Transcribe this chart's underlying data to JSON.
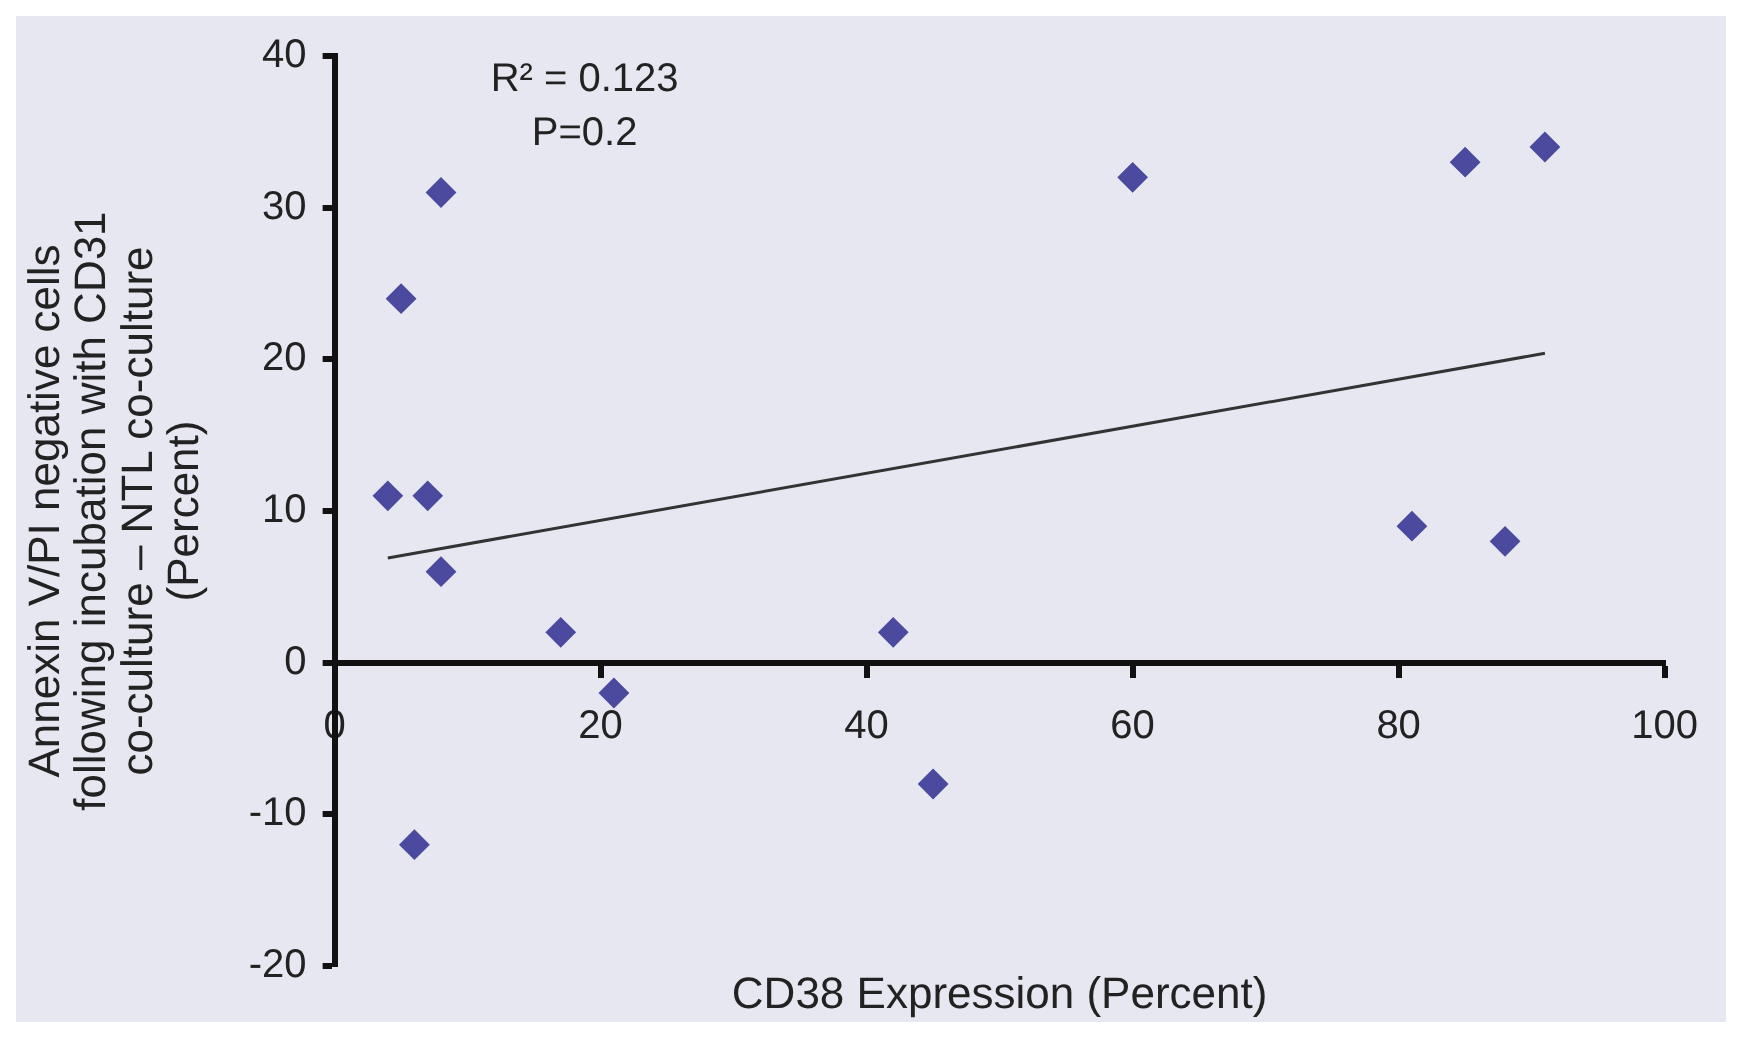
{
  "chart_data": {
    "type": "scatter",
    "xlabel": "CD38 Expression (Percent)",
    "ylabel": "Annexin V/PI negative cells following incubation with CD31 co-culture – NTL co-culture (Percent)",
    "annotations": [
      "R² = 0.123",
      "P=0.2"
    ],
    "xlim": [
      0,
      100
    ],
    "xticks": [
      0,
      20,
      40,
      60,
      80,
      100
    ],
    "ylim": [
      -20,
      40
    ],
    "yticks": [
      -20,
      -10,
      0,
      10,
      20,
      30,
      40
    ],
    "grid": false,
    "legend": false,
    "series": [
      {
        "color": "#4b4a9e",
        "marker": "diamond",
        "x": [
          4,
          7,
          5,
          8,
          8,
          17,
          21,
          42,
          45,
          6,
          60,
          85,
          91,
          81,
          88
        ],
        "values": [
          11,
          11,
          24,
          31,
          6,
          2,
          -2,
          2,
          -8,
          -12,
          32,
          33,
          34,
          9,
          8
        ]
      },
      {
        "type": "line",
        "color": "#333333",
        "marker": "none",
        "line_style": "solid",
        "x": [
          4,
          91
        ],
        "values": [
          6.9,
          20.4
        ]
      }
    ]
  }
}
